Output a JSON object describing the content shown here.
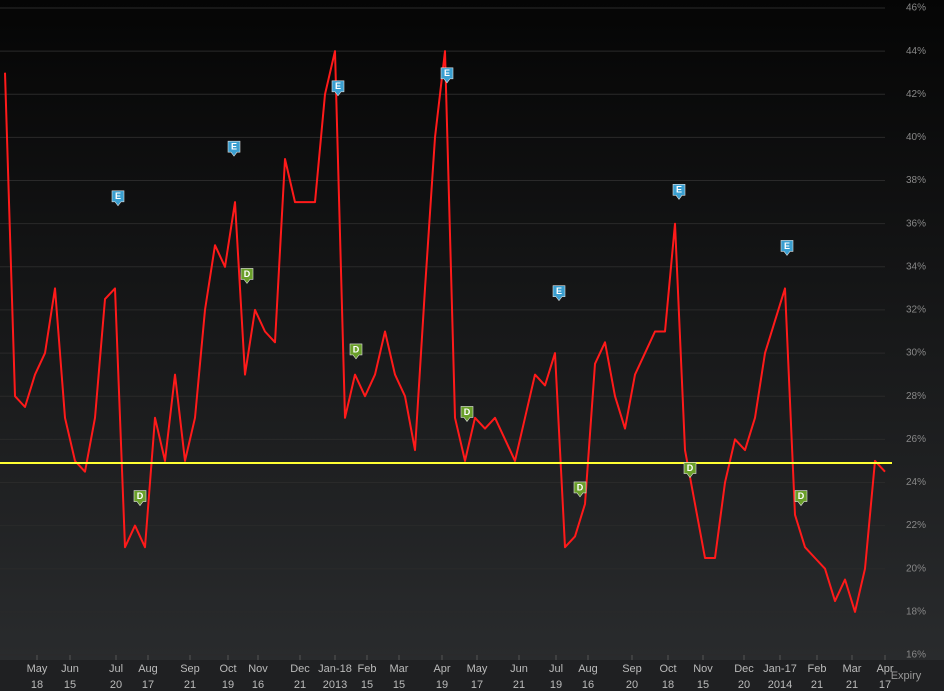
{
  "chart_data": {
    "type": "line",
    "series": [
      {
        "color": "#ff1a1a",
        "values": [
          43,
          28,
          27.5,
          29,
          30,
          33,
          27,
          25,
          24.5,
          27,
          32.5,
          33,
          21,
          22,
          21,
          27,
          25,
          29,
          25,
          27,
          32,
          35,
          34,
          37,
          29,
          32,
          31,
          30.5,
          39,
          37,
          37,
          37,
          42,
          44,
          27,
          29,
          28,
          29,
          31,
          29,
          28,
          25.5,
          33,
          40,
          44,
          27,
          25,
          27,
          26.5,
          27,
          26,
          25,
          27,
          29,
          28.5,
          30,
          21,
          21.5,
          23,
          29.5,
          30.5,
          28,
          26.5,
          29,
          30,
          31,
          31,
          36,
          25.5,
          23,
          20.5,
          20.5,
          24,
          26,
          25.5,
          27,
          30,
          31.5,
          33,
          22.5,
          21,
          20.5,
          20,
          18.5,
          19.5,
          18,
          20,
          25,
          24.5
        ]
      }
    ],
    "reference_line": {
      "value": 24.9,
      "color": "#ffff33"
    },
    "xlim": [
      -0.5,
      88
    ],
    "xticks": [
      {
        "value": 3.2,
        "label": "May",
        "sublabel": "18"
      },
      {
        "value": 6.5,
        "label": "Jun",
        "sublabel": "15"
      },
      {
        "value": 11.1,
        "label": "Jul",
        "sublabel": "20"
      },
      {
        "value": 14.3,
        "label": "Aug",
        "sublabel": "17"
      },
      {
        "value": 18.5,
        "label": "Sep",
        "sublabel": "21"
      },
      {
        "value": 22.3,
        "label": "Oct",
        "sublabel": "19"
      },
      {
        "value": 25.3,
        "label": "Nov",
        "sublabel": "16"
      },
      {
        "value": 29.5,
        "label": "Dec",
        "sublabel": "21"
      },
      {
        "value": 33,
        "label": "Jan-18",
        "sublabel": "2013"
      },
      {
        "value": 36.2,
        "label": "Feb",
        "sublabel": "15"
      },
      {
        "value": 39.4,
        "label": "Mar",
        "sublabel": "15"
      },
      {
        "value": 43.7,
        "label": "Apr",
        "sublabel": "19"
      },
      {
        "value": 47.2,
        "label": "May",
        "sublabel": "17"
      },
      {
        "value": 51.4,
        "label": "Jun",
        "sublabel": "21"
      },
      {
        "value": 55.1,
        "label": "Jul",
        "sublabel": "19"
      },
      {
        "value": 58.3,
        "label": "Aug",
        "sublabel": "16"
      },
      {
        "value": 62.7,
        "label": "Sep",
        "sublabel": "20"
      },
      {
        "value": 66.3,
        "label": "Oct",
        "sublabel": "18"
      },
      {
        "value": 69.8,
        "label": "Nov",
        "sublabel": "15"
      },
      {
        "value": 73.9,
        "label": "Dec",
        "sublabel": "20"
      },
      {
        "value": 77.5,
        "label": "Jan-17",
        "sublabel": "2014"
      },
      {
        "value": 81.2,
        "label": "Feb",
        "sublabel": "21"
      },
      {
        "value": 84.7,
        "label": "Mar",
        "sublabel": "21"
      },
      {
        "value": 88,
        "label": "Apr",
        "sublabel": "17"
      }
    ],
    "xlabel": "Expiry",
    "ylim": [
      16,
      46
    ],
    "yticks": [
      {
        "value": 16,
        "label": "16%"
      },
      {
        "value": 18,
        "label": "18%"
      },
      {
        "value": 20,
        "label": "20%"
      },
      {
        "value": 22,
        "label": "22%"
      },
      {
        "value": 24,
        "label": "24%"
      },
      {
        "value": 26,
        "label": "26%"
      },
      {
        "value": 28,
        "label": "28%"
      },
      {
        "value": 30,
        "label": "30%"
      },
      {
        "value": 32,
        "label": "32%"
      },
      {
        "value": 34,
        "label": "34%"
      },
      {
        "value": 36,
        "label": "36%"
      },
      {
        "value": 38,
        "label": "38%"
      },
      {
        "value": 40,
        "label": "40%"
      },
      {
        "value": 42,
        "label": "42%"
      },
      {
        "value": 44,
        "label": "44%"
      },
      {
        "value": 46,
        "label": "46%"
      }
    ],
    "grid": true,
    "events": [
      {
        "label": "E",
        "x": 11.3,
        "y": 37.2,
        "color": "#3a9fd0"
      },
      {
        "label": "D",
        "x": 13.5,
        "y": 23.3,
        "color": "#6a9f2a"
      },
      {
        "label": "E",
        "x": 22.9,
        "y": 39.5,
        "color": "#3a9fd0"
      },
      {
        "label": "D",
        "x": 24.2,
        "y": 33.6,
        "color": "#6a9f2a"
      },
      {
        "label": "E",
        "x": 33.3,
        "y": 42.3,
        "color": "#3a9fd0"
      },
      {
        "label": "D",
        "x": 35.1,
        "y": 30.1,
        "color": "#6a9f2a"
      },
      {
        "label": "E",
        "x": 44.2,
        "y": 42.9,
        "color": "#3a9fd0"
      },
      {
        "label": "D",
        "x": 46.2,
        "y": 27.2,
        "color": "#6a9f2a"
      },
      {
        "label": "E",
        "x": 55.4,
        "y": 32.8,
        "color": "#3a9fd0"
      },
      {
        "label": "D",
        "x": 57.5,
        "y": 23.7,
        "color": "#6a9f2a"
      },
      {
        "label": "E",
        "x": 67.4,
        "y": 37.5,
        "color": "#3a9fd0"
      },
      {
        "label": "D",
        "x": 68.5,
        "y": 24.6,
        "color": "#6a9f2a"
      },
      {
        "label": "E",
        "x": 78.2,
        "y": 34.9,
        "color": "#3a9fd0"
      },
      {
        "label": "D",
        "x": 79.6,
        "y": 23.3,
        "color": "#6a9f2a"
      }
    ]
  }
}
